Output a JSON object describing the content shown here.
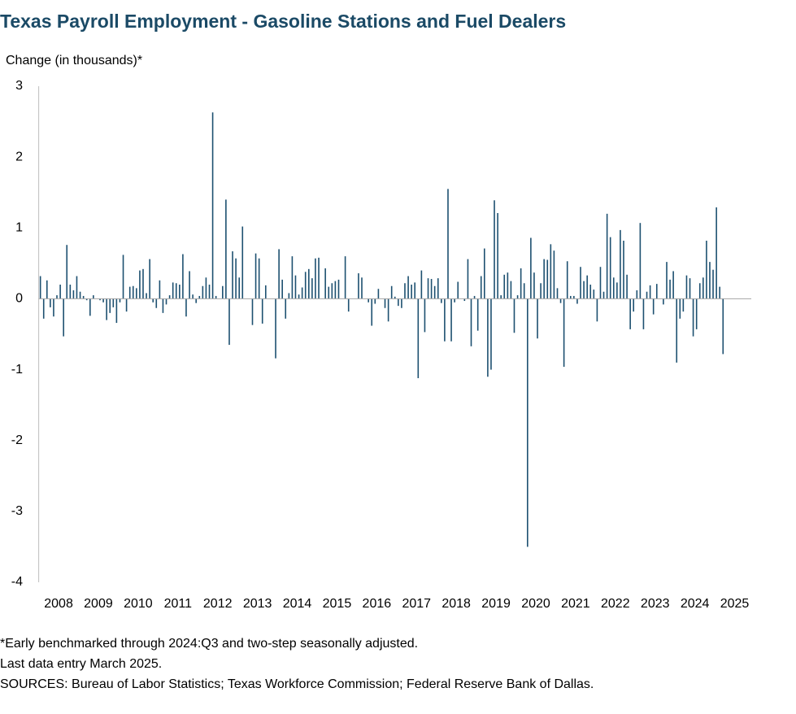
{
  "chart_data": {
    "type": "bar",
    "title": "Texas Payroll Employment - Gasoline Stations and Fuel Dealers",
    "y_label": "Change (in thousands)*",
    "footnotes": [
      "*Early benchmarked through 2024:Q3 and two-step seasonally adjusted.",
      "Last data entry March 2025.",
      "SOURCES: Bureau of Labor Statistics; Texas Workforce Commission; Federal Reserve Bank of Dallas."
    ],
    "color": "#1d5070",
    "grid": false,
    "xlim": [
      2008,
      2026
    ],
    "xticks": [
      {
        "value": 2008.5,
        "label": "2008"
      },
      {
        "value": 2009.5,
        "label": "2009"
      },
      {
        "value": 2010.5,
        "label": "2010"
      },
      {
        "value": 2011.5,
        "label": "2011"
      },
      {
        "value": 2012.5,
        "label": "2012"
      },
      {
        "value": 2013.5,
        "label": "2013"
      },
      {
        "value": 2014.5,
        "label": "2014"
      },
      {
        "value": 2015.5,
        "label": "2015"
      },
      {
        "value": 2016.5,
        "label": "2016"
      },
      {
        "value": 2017.5,
        "label": "2017"
      },
      {
        "value": 2018.5,
        "label": "2018"
      },
      {
        "value": 2019.5,
        "label": "2019"
      },
      {
        "value": 2020.5,
        "label": "2020"
      },
      {
        "value": 2021.5,
        "label": "2021"
      },
      {
        "value": 2022.5,
        "label": "2022"
      },
      {
        "value": 2023.5,
        "label": "2023"
      },
      {
        "value": 2024.5,
        "label": "2024"
      },
      {
        "value": 2025.5,
        "label": "2025"
      }
    ],
    "ylim": [
      -4,
      3
    ],
    "yticks": [
      -4,
      -3,
      -2,
      -1,
      0,
      1,
      2,
      3
    ],
    "x": [
      2008.042,
      2008.125,
      2008.208,
      2008.292,
      2008.375,
      2008.458,
      2008.542,
      2008.625,
      2008.708,
      2008.792,
      2008.875,
      2008.958,
      2009.042,
      2009.125,
      2009.208,
      2009.292,
      2009.375,
      2009.458,
      2009.542,
      2009.625,
      2009.708,
      2009.792,
      2009.875,
      2009.958,
      2010.042,
      2010.125,
      2010.208,
      2010.292,
      2010.375,
      2010.458,
      2010.542,
      2010.625,
      2010.708,
      2010.792,
      2010.875,
      2010.958,
      2011.042,
      2011.125,
      2011.208,
      2011.292,
      2011.375,
      2011.458,
      2011.542,
      2011.625,
      2011.708,
      2011.792,
      2011.875,
      2011.958,
      2012.042,
      2012.125,
      2012.208,
      2012.292,
      2012.375,
      2012.458,
      2012.542,
      2012.625,
      2012.708,
      2012.792,
      2012.875,
      2012.958,
      2013.042,
      2013.125,
      2013.208,
      2013.292,
      2013.375,
      2013.458,
      2013.542,
      2013.625,
      2013.708,
      2013.792,
      2013.875,
      2013.958,
      2014.042,
      2014.125,
      2014.208,
      2014.292,
      2014.375,
      2014.458,
      2014.542,
      2014.625,
      2014.708,
      2014.792,
      2014.875,
      2014.958,
      2015.042,
      2015.125,
      2015.208,
      2015.292,
      2015.375,
      2015.458,
      2015.542,
      2015.625,
      2015.708,
      2015.792,
      2015.875,
      2015.958,
      2016.042,
      2016.125,
      2016.208,
      2016.292,
      2016.375,
      2016.458,
      2016.542,
      2016.625,
      2016.708,
      2016.792,
      2016.875,
      2016.958,
      2017.042,
      2017.125,
      2017.208,
      2017.292,
      2017.375,
      2017.458,
      2017.542,
      2017.625,
      2017.708,
      2017.792,
      2017.875,
      2017.958,
      2018.042,
      2018.125,
      2018.208,
      2018.292,
      2018.375,
      2018.458,
      2018.542,
      2018.625,
      2018.708,
      2018.792,
      2018.875,
      2018.958,
      2019.042,
      2019.125,
      2019.208,
      2019.292,
      2019.375,
      2019.458,
      2019.542,
      2019.625,
      2019.708,
      2019.792,
      2019.875,
      2019.958,
      2020.042,
      2020.125,
      2020.208,
      2020.292,
      2020.375,
      2020.458,
      2020.542,
      2020.625,
      2020.708,
      2020.792,
      2020.875,
      2020.958,
      2021.042,
      2021.125,
      2021.208,
      2021.292,
      2021.375,
      2021.458,
      2021.542,
      2021.625,
      2021.708,
      2021.792,
      2021.875,
      2021.958,
      2022.042,
      2022.125,
      2022.208,
      2022.292,
      2022.375,
      2022.458,
      2022.542,
      2022.625,
      2022.708,
      2022.792,
      2022.875,
      2022.958,
      2023.042,
      2023.125,
      2023.208,
      2023.292,
      2023.375,
      2023.458,
      2023.542,
      2023.625,
      2023.708,
      2023.792,
      2023.875,
      2023.958,
      2024.042,
      2024.125,
      2024.208,
      2024.292,
      2024.375,
      2024.458,
      2024.542,
      2024.625,
      2024.708,
      2024.792,
      2024.875,
      2024.958,
      2025.042,
      2025.125,
      2025.208
    ],
    "values": [
      0.32,
      -0.28,
      0.26,
      -0.12,
      -0.25,
      0.05,
      0.2,
      -0.53,
      0.76,
      0.2,
      0.12,
      0.32,
      0.1,
      0.04,
      -0.02,
      -0.24,
      0.05,
      0.0,
      -0.02,
      -0.05,
      -0.3,
      -0.2,
      -0.12,
      -0.34,
      -0.05,
      0.62,
      -0.18,
      0.17,
      0.18,
      0.15,
      0.4,
      0.42,
      0.08,
      0.56,
      -0.05,
      -0.13,
      0.26,
      -0.2,
      -0.08,
      0.05,
      0.23,
      0.22,
      0.2,
      0.63,
      -0.25,
      0.39,
      0.06,
      -0.06,
      0.04,
      0.18,
      0.3,
      0.2,
      2.63,
      0.04,
      0.0,
      0.18,
      1.4,
      -0.65,
      0.67,
      0.57,
      0.3,
      1.02,
      0.0,
      0.0,
      -0.37,
      0.64,
      0.57,
      -0.35,
      0.19,
      0.0,
      0.0,
      -0.84,
      0.7,
      0.27,
      -0.28,
      0.08,
      0.6,
      0.33,
      0.06,
      0.16,
      0.38,
      0.42,
      0.29,
      0.57,
      0.58,
      0.0,
      0.43,
      0.17,
      0.22,
      0.25,
      0.27,
      0.0,
      0.6,
      -0.18,
      0.0,
      0.0,
      0.36,
      0.3,
      0.0,
      -0.05,
      -0.38,
      -0.07,
      0.14,
      0.0,
      -0.13,
      -0.32,
      0.18,
      0.03,
      -0.1,
      -0.13,
      0.22,
      0.32,
      0.2,
      0.23,
      -1.12,
      0.4,
      -0.47,
      0.29,
      0.28,
      0.18,
      0.29,
      -0.06,
      -0.6,
      1.55,
      -0.6,
      -0.05,
      0.24,
      0.0,
      -0.03,
      0.56,
      -0.67,
      0.04,
      -0.45,
      0.32,
      0.71,
      -1.1,
      -1.0,
      1.39,
      1.21,
      0.05,
      0.34,
      0.37,
      0.25,
      -0.48,
      0.05,
      0.43,
      0.22,
      -3.5,
      0.86,
      0.37,
      -0.56,
      0.22,
      0.56,
      0.55,
      0.77,
      0.68,
      0.15,
      -0.06,
      -0.96,
      0.53,
      0.04,
      0.04,
      -0.07,
      0.45,
      0.25,
      0.33,
      0.2,
      0.13,
      -0.32,
      0.45,
      0.1,
      1.2,
      0.87,
      0.3,
      0.23,
      0.97,
      0.82,
      0.34,
      -0.43,
      -0.18,
      0.12,
      1.07,
      -0.43,
      0.1,
      0.19,
      -0.22,
      0.21,
      0.0,
      -0.08,
      0.52,
      0.27,
      0.39,
      -0.9,
      -0.28,
      -0.18,
      0.33,
      0.29,
      -0.53,
      -0.43,
      0.22,
      0.3,
      0.82,
      0.52,
      0.41,
      1.29,
      0.17,
      -0.78
    ]
  }
}
